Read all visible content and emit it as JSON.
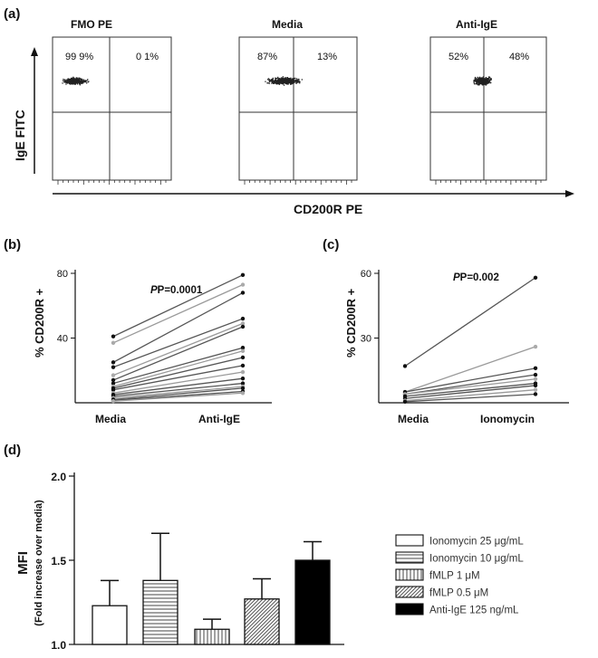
{
  "panel_labels": [
    "(a)",
    "(b)",
    "(c)",
    "(d)"
  ],
  "flow": {
    "y_axis_label": "IgE FITC",
    "x_axis_label": "CD200R PE",
    "panels": [
      {
        "title": "FMO PE",
        "left_pct": "99 9%",
        "right_pct": "0 1%"
      },
      {
        "title": "Media",
        "left_pct": "87%",
        "right_pct": "13%"
      },
      {
        "title": "Anti-IgE",
        "left_pct": "52%",
        "right_pct": "48%"
      }
    ]
  },
  "chart_data": [
    {
      "type": "line",
      "panel": "(b)",
      "ylabel": "% CD200R +",
      "categories": [
        "Media",
        "Anti-IgE"
      ],
      "yticks": [
        40,
        80
      ],
      "ylim": [
        0,
        80
      ],
      "annotation": "P=0.0001",
      "series": [
        {
          "values": [
            41,
            79
          ]
        },
        {
          "values": [
            37,
            73
          ]
        },
        {
          "values": [
            25,
            68
          ]
        },
        {
          "values": [
            22,
            52
          ]
        },
        {
          "values": [
            17,
            49
          ]
        },
        {
          "values": [
            14,
            47
          ]
        },
        {
          "values": [
            12,
            34
          ]
        },
        {
          "values": [
            10,
            32
          ]
        },
        {
          "values": [
            9,
            28
          ]
        },
        {
          "values": [
            8,
            23
          ]
        },
        {
          "values": [
            6,
            19
          ]
        },
        {
          "values": [
            5,
            15
          ]
        },
        {
          "values": [
            4,
            12
          ]
        },
        {
          "values": [
            3,
            10
          ]
        },
        {
          "values": [
            2,
            9
          ]
        },
        {
          "values": [
            1.5,
            7
          ]
        },
        {
          "values": [
            1,
            6
          ]
        }
      ]
    },
    {
      "type": "line",
      "panel": "(c)",
      "ylabel": "% CD200R +",
      "categories": [
        "Media",
        "Ionomycin"
      ],
      "yticks": [
        30,
        60
      ],
      "ylim": [
        0,
        60
      ],
      "annotation": "P=0.002",
      "series": [
        {
          "values": [
            17,
            58
          ]
        },
        {
          "values": [
            5,
            26
          ]
        },
        {
          "values": [
            5,
            16
          ]
        },
        {
          "values": [
            4,
            13
          ]
        },
        {
          "values": [
            4,
            11
          ]
        },
        {
          "values": [
            3,
            9
          ]
        },
        {
          "values": [
            2,
            8
          ]
        },
        {
          "values": [
            1,
            6
          ]
        },
        {
          "values": [
            0.5,
            4
          ]
        }
      ]
    },
    {
      "type": "bar",
      "panel": "(d)",
      "ylabel": "MFI",
      "ylabel_sub": "(Fold increase over media)",
      "yticks": [
        "1.0",
        "1.5",
        "2.0"
      ],
      "ylim": [
        1.0,
        2.0
      ],
      "categories": [
        "Ionomycin 25 μg/mL",
        "Ionomycin 10 μg/mL",
        "fMLP 1 μM",
        "fMLP 0.5 μM",
        "Anti-IgE 125 ng/mL"
      ],
      "values": [
        1.23,
        1.38,
        1.09,
        1.27,
        1.5
      ],
      "errors": [
        0.15,
        0.28,
        0.06,
        0.12,
        0.11
      ],
      "fills": [
        "white",
        "horizontal-stripes",
        "vertical-stripes",
        "diagonal-stripes",
        "black"
      ]
    }
  ]
}
